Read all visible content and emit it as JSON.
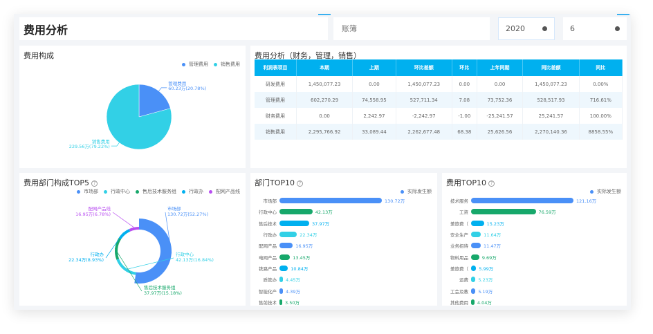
{
  "header": {
    "title": "费用分析",
    "ledger_placeholder": "账簿",
    "year": "2020",
    "month": "6"
  },
  "colors": {
    "blue": "#4a90f7",
    "green": "#17a86b",
    "sky": "#00b0ef",
    "cyan": "#32d0e6",
    "purple": "#b84ef0",
    "header": "#00b0ef"
  },
  "composition": {
    "title": "费用构成",
    "legend": [
      "管理费用",
      "销售费用"
    ],
    "chart_data": {
      "type": "pie",
      "slices": [
        {
          "name": "管理费用",
          "value": 60.23,
          "label": "60.23万(20.78%)",
          "color": "#4a90f7"
        },
        {
          "name": "销售费用",
          "value": 229.56,
          "label": "229.56万(79.22%)",
          "color": "#32d0e6"
        }
      ]
    }
  },
  "analysis": {
    "title": "费用分析（财务，管理，销售）",
    "columns": [
      "利润表项目",
      "本期",
      "上期",
      "环比差额",
      "环比",
      "上年同期",
      "同比差额",
      "同比"
    ],
    "rows": [
      [
        "研发费用",
        "1,450,077.23",
        "0.00",
        "1,450,077.23",
        "0.00",
        "0.00",
        "1,450,077.23",
        "0.00%"
      ],
      [
        "管理费用",
        "602,270.29",
        "74,558.95",
        "527,711.34",
        "7.08",
        "73,752.36",
        "528,517.93",
        "716.61%"
      ],
      [
        "财务费用",
        "0.00",
        "2,242.97",
        "-2,242.97",
        "-1.00",
        "-25,241.57",
        "25,241.57",
        "100.00%"
      ],
      [
        "销售费用",
        "2,295,766.92",
        "33,089.44",
        "2,262,677.48",
        "68.38",
        "25,626.56",
        "2,270,140.36",
        "8858.55%"
      ]
    ]
  },
  "dept_top5": {
    "title": "费用部门构成TOP5",
    "help": "?",
    "chart_data": {
      "type": "pie",
      "donut": true,
      "slices": [
        {
          "name": "市场部",
          "value": 130.72,
          "label": "130.72万(52.27%)",
          "color": "#4a90f7"
        },
        {
          "name": "行政中心",
          "value": 42.13,
          "label": "42.13万(16.84%)",
          "color": "#32d0e6"
        },
        {
          "name": "售后技术服务组",
          "value": 37.97,
          "label": "37.97万(15.18%)",
          "color": "#17a86b"
        },
        {
          "name": "行政办",
          "value": 22.34,
          "label": "22.34万(8.93%)",
          "color": "#00b0ef"
        },
        {
          "name": "配网产品线",
          "value": 16.95,
          "label": "16.95万(6.78%)",
          "color": "#b84ef0"
        }
      ]
    }
  },
  "dept_top10": {
    "title": "部门TOP10",
    "help": "?",
    "legend": "实际发生额",
    "chart_data": {
      "type": "bar",
      "orientation": "horizontal",
      "unit": "万",
      "categories": [
        "市场部",
        "行政中心",
        "售后技术",
        "行政办",
        "配网产品",
        "电网产品",
        "铁路产品",
        "质管办",
        "智能化产",
        "售前技术"
      ],
      "values": [
        130.72,
        42.13,
        37.97,
        22.34,
        16.95,
        13.45,
        10.84,
        4.45,
        4.39,
        3.5
      ]
    }
  },
  "cost_top10": {
    "title": "费用TOP10",
    "help": "?",
    "legend": "实际发生额",
    "chart_data": {
      "type": "bar",
      "orientation": "horizontal",
      "unit": "万",
      "categories": [
        "技术服务",
        "工资",
        "差旅费（",
        "安全生产",
        "业务招待",
        "物料用品",
        "差旅费（",
        "运费",
        "工会及教",
        "其他费用"
      ],
      "values": [
        121.16,
        76.59,
        15.23,
        11.64,
        11.47,
        9.69,
        5.99,
        5.23,
        5.19,
        4.04
      ]
    }
  }
}
